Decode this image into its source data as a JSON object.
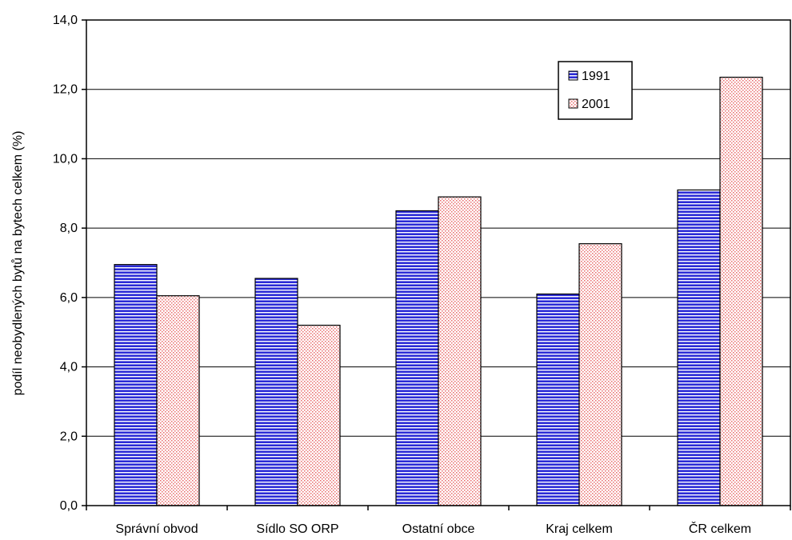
{
  "chart_data": {
    "type": "bar",
    "title": "",
    "xlabel": "",
    "ylabel": "podíl neobydlených bytů na bytech celkem (%)",
    "categories": [
      "Správní obvod",
      "Sídlo SO ORP",
      "Ostatní obce",
      "Kraj celkem",
      "ČR celkem"
    ],
    "series": [
      {
        "name": "1991",
        "values": [
          6.95,
          6.55,
          8.5,
          6.1,
          9.1
        ],
        "color": "#2b2bd6",
        "pattern": "horizontal-stripes"
      },
      {
        "name": "2001",
        "values": [
          6.05,
          5.2,
          8.9,
          7.55,
          12.35
        ],
        "color": "#f08a8a",
        "pattern": "dotted"
      }
    ],
    "ylim": [
      0,
      14
    ],
    "yticks": [
      0,
      2,
      4,
      6,
      8,
      10,
      12,
      14
    ],
    "ytick_labels": [
      "0,0",
      "2,0",
      "4,0",
      "6,0",
      "8,0",
      "10,0",
      "12,0",
      "14,0"
    ],
    "grid": true,
    "legend_position": "top-right"
  }
}
